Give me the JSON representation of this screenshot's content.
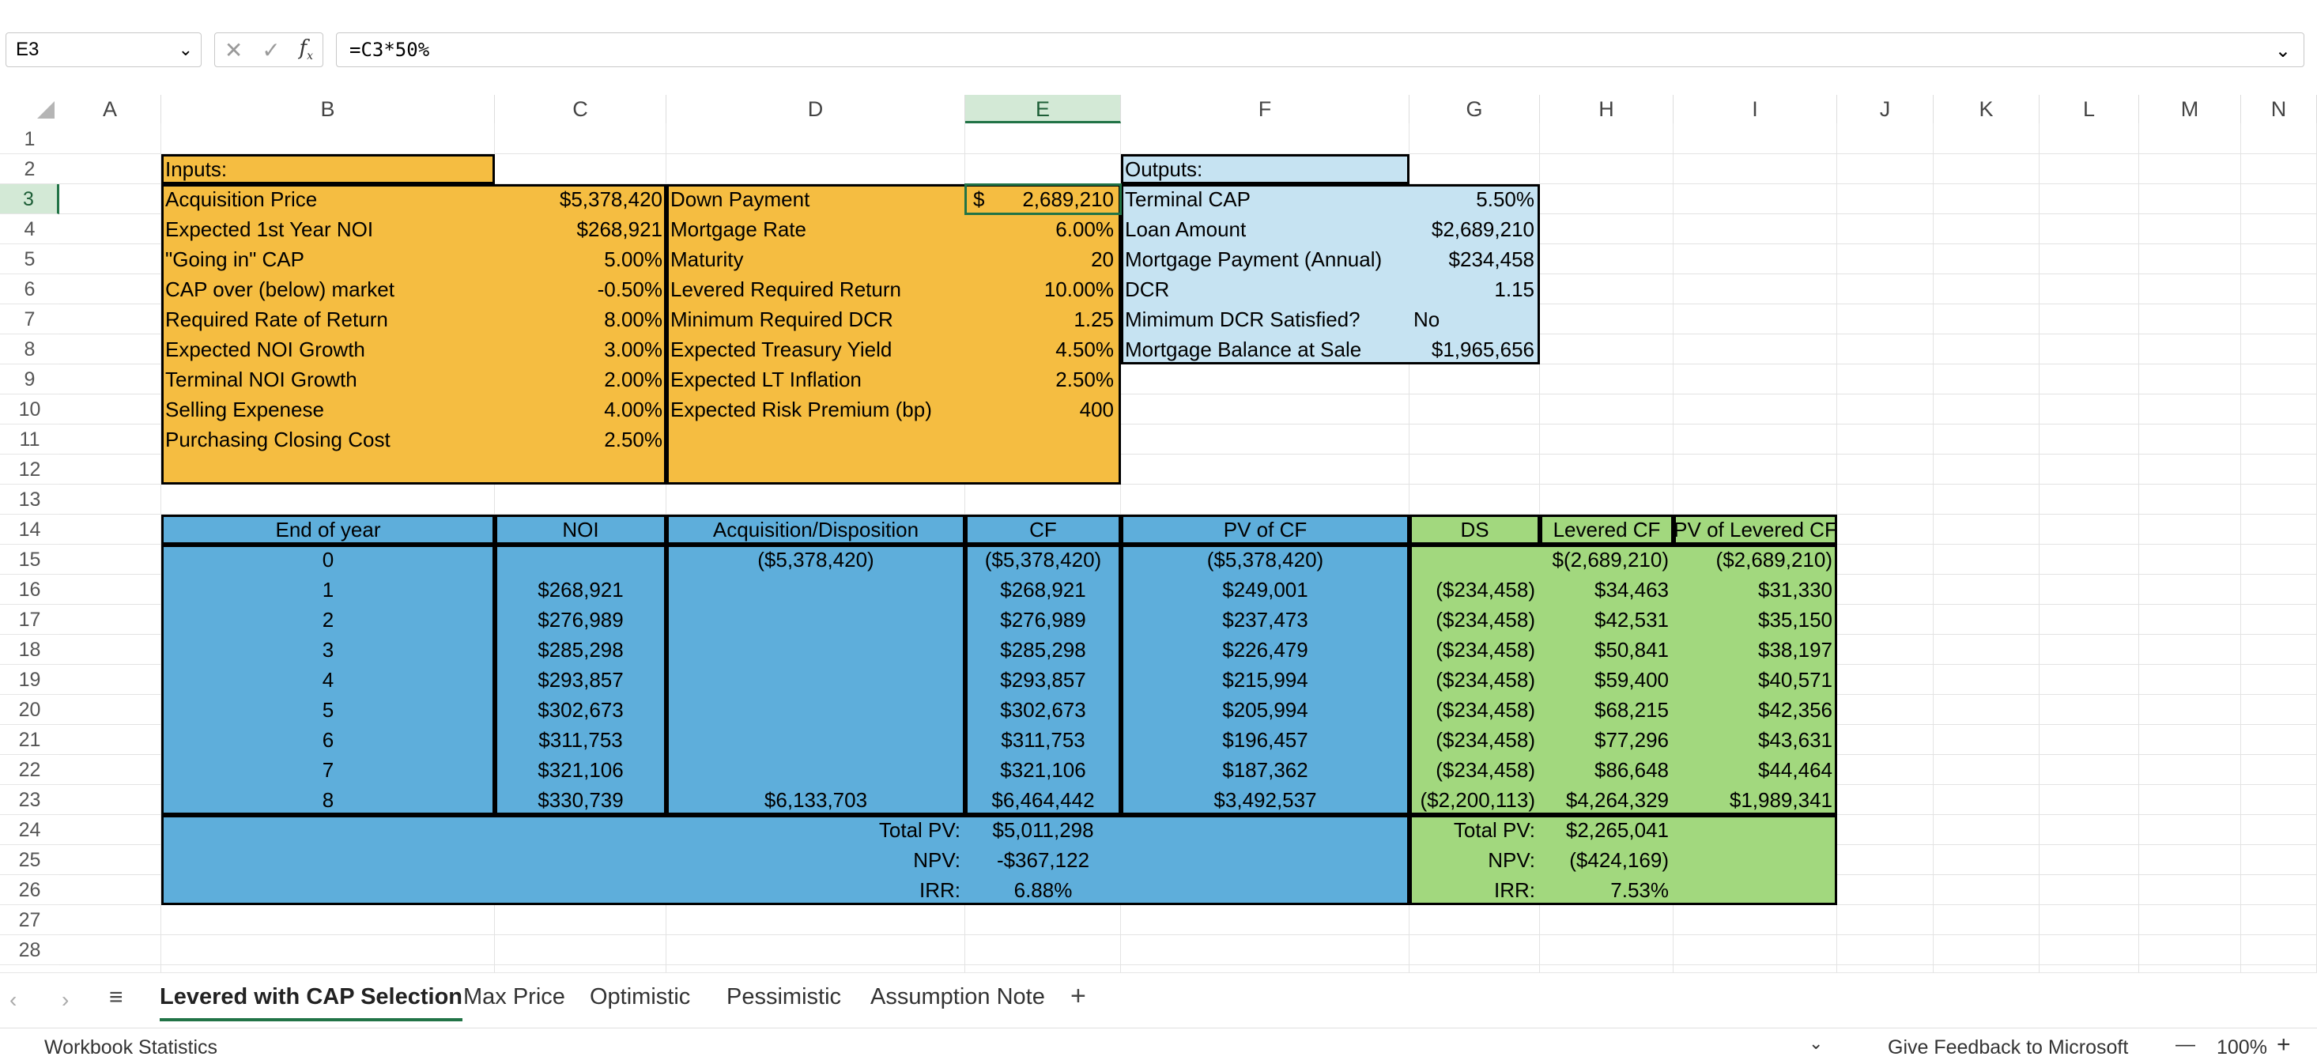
{
  "namebox": "E3",
  "formula": "=C3*50%",
  "columns": [
    "A",
    "B",
    "C",
    "D",
    "E",
    "F",
    "G",
    "H",
    "I",
    "J",
    "K",
    "L",
    "M",
    "N"
  ],
  "rows": [
    "1",
    "2",
    "3",
    "4",
    "5",
    "6",
    "7",
    "8",
    "9",
    "10",
    "11",
    "12",
    "13",
    "14",
    "15",
    "16",
    "17",
    "18",
    "19",
    "20",
    "21",
    "22",
    "23",
    "24",
    "25",
    "26",
    "27",
    "28"
  ],
  "inputs": {
    "header": "Inputs:",
    "left": [
      {
        "label": "Acquisition Price",
        "value": "$5,378,420"
      },
      {
        "label": "Expected 1st Year NOI",
        "value": "$268,921"
      },
      {
        "label": "\"Going in\" CAP",
        "value": "5.00%"
      },
      {
        "label": "CAP over (below) market",
        "value": "-0.50%"
      },
      {
        "label": "Required Rate of Return",
        "value": "8.00%"
      },
      {
        "label": "Expected NOI Growth",
        "value": "3.00%"
      },
      {
        "label": "Terminal NOI Growth",
        "value": "2.00%"
      },
      {
        "label": "Selling Expenese",
        "value": "4.00%"
      },
      {
        "label": "Purchasing Closing Cost",
        "value": "2.50%"
      }
    ],
    "right": [
      {
        "label": "Down Payment",
        "currency": "$",
        "value": "2,689,210"
      },
      {
        "label": "Mortgage Rate",
        "value": "6.00%"
      },
      {
        "label": "Maturity",
        "value": "20"
      },
      {
        "label": "Levered Required Return",
        "value": "10.00%"
      },
      {
        "label": "Minimum Required DCR",
        "value": "1.25"
      },
      {
        "label": "Expected Treasury Yield",
        "value": "4.50%"
      },
      {
        "label": "Expected LT Inflation",
        "value": "2.50%"
      },
      {
        "label": "Expected Risk Premium (bp)",
        "value": "400"
      }
    ]
  },
  "outputs": {
    "header": "Outputs:",
    "items": [
      {
        "label": "Terminal CAP",
        "value": "5.50%"
      },
      {
        "label": "Loan Amount",
        "value": "$2,689,210"
      },
      {
        "label": "Mortgage Payment (Annual)",
        "value": "$234,458"
      },
      {
        "label": "DCR",
        "value": "1.15"
      },
      {
        "label": "Mimimum DCR Satisfied?",
        "value": "No"
      },
      {
        "label": "Mortgage Balance at Sale",
        "value": "$1,965,656"
      }
    ]
  },
  "cf_table": {
    "headers": [
      "End of year",
      "NOI",
      "Acquisition/Disposition",
      "CF",
      "PV of CF",
      "DS",
      "Levered CF",
      "PV of Levered CF"
    ],
    "rows": [
      [
        "0",
        "",
        "($5,378,420)",
        "($5,378,420)",
        "($5,378,420)",
        "",
        "$(2,689,210)",
        "($2,689,210)"
      ],
      [
        "1",
        "$268,921",
        "",
        "$268,921",
        "$249,001",
        "($234,458)",
        "$34,463",
        "$31,330"
      ],
      [
        "2",
        "$276,989",
        "",
        "$276,989",
        "$237,473",
        "($234,458)",
        "$42,531",
        "$35,150"
      ],
      [
        "3",
        "$285,298",
        "",
        "$285,298",
        "$226,479",
        "($234,458)",
        "$50,841",
        "$38,197"
      ],
      [
        "4",
        "$293,857",
        "",
        "$293,857",
        "$215,994",
        "($234,458)",
        "$59,400",
        "$40,571"
      ],
      [
        "5",
        "$302,673",
        "",
        "$302,673",
        "$205,994",
        "($234,458)",
        "$68,215",
        "$42,356"
      ],
      [
        "6",
        "$311,753",
        "",
        "$311,753",
        "$196,457",
        "($234,458)",
        "$77,296",
        "$43,631"
      ],
      [
        "7",
        "$321,106",
        "",
        "$321,106",
        "$187,362",
        "($234,458)",
        "$86,648",
        "$44,464"
      ],
      [
        "8",
        "$330,739",
        "$6,133,703",
        "$6,464,442",
        "$3,492,537",
        "($2,200,113)",
        "$4,264,329",
        "$1,989,341"
      ]
    ],
    "unlevered_summary": [
      {
        "label": "Total PV:",
        "value": "$5,011,298"
      },
      {
        "label": "NPV:",
        "value": "-$367,122"
      },
      {
        "label": "IRR:",
        "value": "6.88%"
      }
    ],
    "levered_summary": [
      {
        "label": "Total PV:",
        "value": "$2,265,041"
      },
      {
        "label": "NPV:",
        "value": "($424,169)"
      },
      {
        "label": "IRR:",
        "value": "7.53%"
      }
    ]
  },
  "sheet_tabs": [
    "Levered with CAP Selection",
    "Max Price",
    "Optimistic",
    "Pessimistic",
    "Assumption Note"
  ],
  "active_tab": "Levered with CAP Selection",
  "add_sheet": "+",
  "status": {
    "left": "Workbook Statistics",
    "feedback": "Give Feedback to Microsoft",
    "zoom": "100%",
    "zoom_minus": "—",
    "zoom_plus": "+"
  },
  "colors": {
    "orange": "#f5bd41",
    "light_blue": "#c6e3f2",
    "blue": "#5eaedb",
    "green": "#a2d87e",
    "excel_green": "#217346"
  }
}
